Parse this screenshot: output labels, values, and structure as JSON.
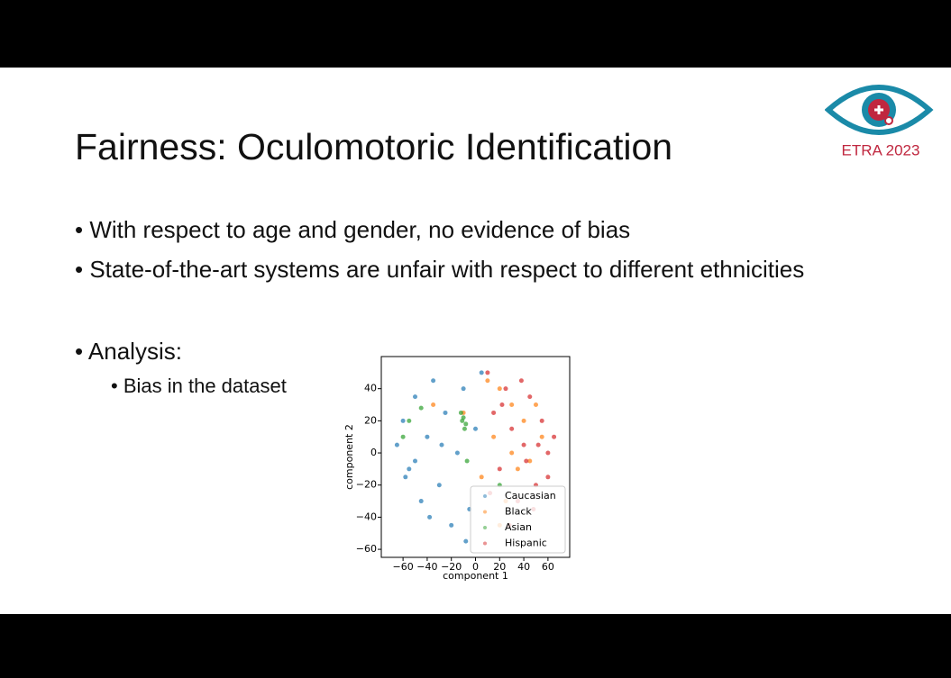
{
  "slide": {
    "title": "Fairness: Oculomotoric Identification",
    "bullets": [
      "With respect to age and gender, no evidence of bias",
      "State-of-the-art systems are unfair with respect to different ethnicities",
      "Analysis:"
    ],
    "sub_bullets": [
      "Bias in the dataset"
    ],
    "logo_text": "ETRA 2023"
  },
  "chart_data": {
    "type": "scatter",
    "xlabel": "component 1",
    "ylabel": "component 2",
    "xlim": [
      -78,
      78
    ],
    "ylim": [
      -65,
      60
    ],
    "xticks": [
      {
        "value": -60,
        "label": "−60"
      },
      {
        "value": -40,
        "label": "−40"
      },
      {
        "value": -20,
        "label": "−20"
      },
      0,
      20,
      40,
      60
    ],
    "yticks": [
      {
        "value": -60,
        "label": "−60"
      },
      {
        "value": -40,
        "label": "−40"
      },
      {
        "value": -20,
        "label": "−20"
      },
      0,
      20,
      40
    ],
    "legend": "lower right",
    "series": [
      {
        "name": "Caucasian",
        "color": "#1f77b4",
        "x": [
          -65,
          -60,
          -55,
          -50,
          -45,
          -40,
          -35,
          -30,
          -25,
          -20,
          -15,
          -10,
          -5,
          0,
          -50,
          -38,
          -58,
          -28,
          -8,
          5
        ],
        "y": [
          5,
          20,
          -10,
          35,
          -30,
          10,
          45,
          -20,
          25,
          -45,
          0,
          40,
          -35,
          15,
          -5,
          -40,
          -15,
          5,
          -55,
          50
        ]
      },
      {
        "name": "Black",
        "color": "#ff7f0e",
        "x": [
          20,
          30,
          35,
          15,
          40,
          25,
          10,
          45,
          5,
          50,
          -10,
          30,
          20,
          55,
          -35
        ],
        "y": [
          40,
          30,
          -10,
          10,
          20,
          -30,
          45,
          -5,
          -15,
          30,
          25,
          0,
          -45,
          10,
          30
        ]
      },
      {
        "name": "Asian",
        "color": "#2ca02c",
        "x": [
          -10,
          -8,
          -12,
          -9,
          -11,
          -55,
          -60,
          -7,
          -45,
          20
        ],
        "y": [
          22,
          18,
          25,
          15,
          20,
          20,
          10,
          -5,
          28,
          -20
        ]
      },
      {
        "name": "Hispanic",
        "color": "#d62728",
        "x": [
          60,
          55,
          50,
          45,
          40,
          35,
          30,
          25,
          20,
          15,
          65,
          60,
          48,
          38,
          28,
          10,
          12,
          42,
          52,
          22
        ],
        "y": [
          0,
          20,
          -20,
          35,
          5,
          -30,
          15,
          40,
          -10,
          25,
          10,
          -15,
          -35,
          45,
          -45,
          50,
          -25,
          -5,
          5,
          30
        ]
      }
    ]
  }
}
